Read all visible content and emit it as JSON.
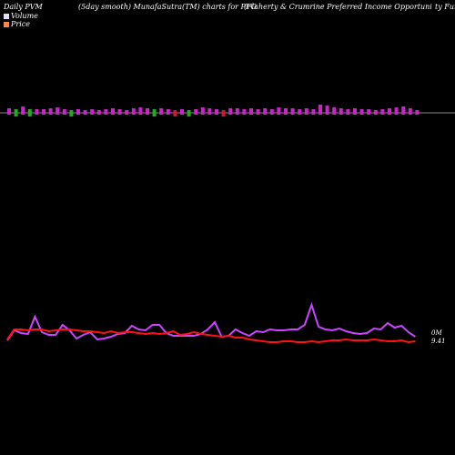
{
  "header": {
    "left": "Daily PVM",
    "middle": "(5day smooth) MunafaSutra(TM) charts for PFO",
    "right": "(Flaherty & Crumrine  Preferred Income  Opportuni",
    "far_right": "ty Fun"
  },
  "legend": [
    {
      "label": "Volume",
      "color": "#e0e0ff"
    },
    {
      "label": "Price",
      "color": "#ff8844"
    }
  ],
  "price_labels": {
    "top": "0M",
    "bottom": "9.41"
  },
  "colors": {
    "volume_up": "#cc22cc",
    "volume_down": "#dd1133",
    "volume_green": "#22aa22",
    "line_volume": "#cc44ff",
    "line_price": "#ff1111",
    "axis": "#888888"
  },
  "chart_data": {
    "type": "bar",
    "volume_bars": [
      {
        "h": 5,
        "c": "up"
      },
      {
        "h": 6,
        "c": "green"
      },
      {
        "h": 7,
        "c": "up"
      },
      {
        "h": 6,
        "c": "green"
      },
      {
        "h": 4,
        "c": "up"
      },
      {
        "h": 4,
        "c": "up"
      },
      {
        "h": 5,
        "c": "up"
      },
      {
        "h": 6,
        "c": "up"
      },
      {
        "h": 4,
        "c": "up"
      },
      {
        "h": 5,
        "c": "green"
      },
      {
        "h": 4,
        "c": "up"
      },
      {
        "h": 3,
        "c": "up"
      },
      {
        "h": 4,
        "c": "up"
      },
      {
        "h": 3,
        "c": "up"
      },
      {
        "h": 4,
        "c": "up"
      },
      {
        "h": 5,
        "c": "up"
      },
      {
        "h": 4,
        "c": "up"
      },
      {
        "h": 3,
        "c": "up"
      },
      {
        "h": 5,
        "c": "up"
      },
      {
        "h": 6,
        "c": "up"
      },
      {
        "h": 5,
        "c": "up"
      },
      {
        "h": 6,
        "c": "green"
      },
      {
        "h": 5,
        "c": "up"
      },
      {
        "h": 4,
        "c": "up"
      },
      {
        "h": 5,
        "c": "down"
      },
      {
        "h": 4,
        "c": "up"
      },
      {
        "h": 5,
        "c": "green"
      },
      {
        "h": 4,
        "c": "up"
      },
      {
        "h": 6,
        "c": "up"
      },
      {
        "h": 5,
        "c": "up"
      },
      {
        "h": 4,
        "c": "up"
      },
      {
        "h": 5,
        "c": "down"
      },
      {
        "h": 5,
        "c": "up"
      },
      {
        "h": 5,
        "c": "up"
      },
      {
        "h": 4,
        "c": "up"
      },
      {
        "h": 5,
        "c": "up"
      },
      {
        "h": 4,
        "c": "up"
      },
      {
        "h": 5,
        "c": "up"
      },
      {
        "h": 4,
        "c": "up"
      },
      {
        "h": 6,
        "c": "up"
      },
      {
        "h": 5,
        "c": "up"
      },
      {
        "h": 5,
        "c": "up"
      },
      {
        "h": 4,
        "c": "up"
      },
      {
        "h": 5,
        "c": "up"
      },
      {
        "h": 4,
        "c": "up"
      },
      {
        "h": 9,
        "c": "up"
      },
      {
        "h": 8,
        "c": "up"
      },
      {
        "h": 6,
        "c": "up"
      },
      {
        "h": 5,
        "c": "up"
      },
      {
        "h": 4,
        "c": "up"
      },
      {
        "h": 5,
        "c": "up"
      },
      {
        "h": 4,
        "c": "up"
      },
      {
        "h": 4,
        "c": "up"
      },
      {
        "h": 3,
        "c": "up"
      },
      {
        "h": 4,
        "c": "up"
      },
      {
        "h": 5,
        "c": "up"
      },
      {
        "h": 6,
        "c": "up"
      },
      {
        "h": 7,
        "c": "up"
      },
      {
        "h": 5,
        "c": "up"
      },
      {
        "h": 3,
        "c": "up"
      }
    ],
    "volume_line": [
      374,
      363,
      366,
      367,
      348,
      365,
      368,
      368,
      357,
      363,
      372,
      368,
      365,
      373,
      372,
      370,
      367,
      366,
      358,
      362,
      363,
      357,
      357,
      366,
      369,
      369,
      369,
      369,
      367,
      362,
      354,
      370,
      369,
      362,
      366,
      369,
      364,
      365,
      362,
      363,
      363,
      362,
      362,
      357,
      335,
      359,
      362,
      363,
      361,
      364,
      366,
      367,
      366,
      361,
      362,
      355,
      360,
      358,
      365,
      370
    ],
    "price_line": [
      373,
      362,
      362,
      363,
      362,
      362,
      364,
      363,
      362,
      362,
      363,
      364,
      364,
      365,
      366,
      364,
      366,
      365,
      365,
      366,
      367,
      366,
      367,
      366,
      364,
      368,
      367,
      365,
      367,
      368,
      369,
      370,
      369,
      371,
      371,
      373,
      374,
      375,
      376,
      376,
      375,
      375,
      376,
      376,
      375,
      376,
      375,
      374,
      374,
      373,
      374,
      374,
      374,
      373,
      374,
      375,
      375,
      374,
      376,
      375
    ]
  }
}
